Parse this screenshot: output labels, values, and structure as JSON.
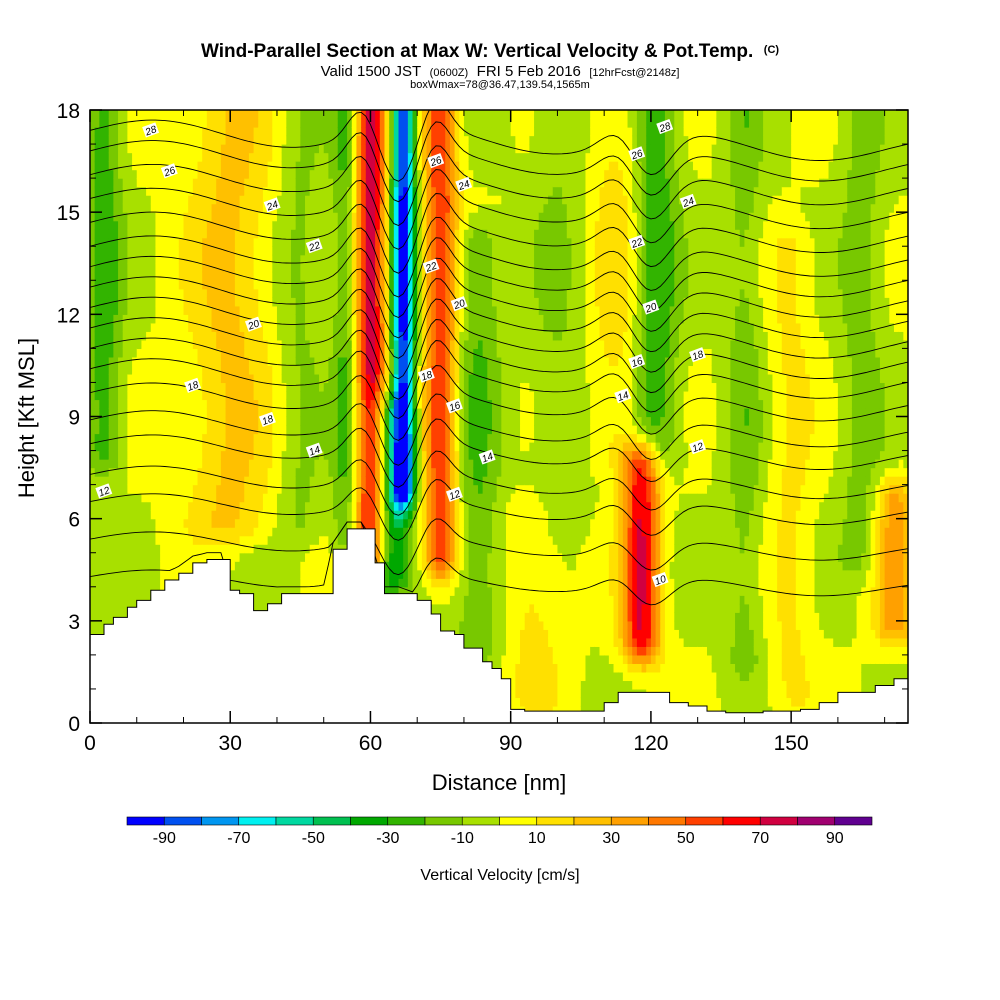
{
  "title": {
    "main": "Wind-Parallel Section at Max W: Vertical Velocity & Pot.Temp.",
    "main_mark": "(C)",
    "line2_a": "Valid 1500 JST",
    "line2_b": "(0600Z)",
    "line2_c": "FRI 5 Feb 2016",
    "line2_d": "[12hrFcst@2148z]",
    "line3": "boxWmax=78@36.47,139.54,1565m"
  },
  "chart_data": {
    "type": "heatmap",
    "xlabel": "Distance [nm]",
    "ylabel": "Height [Kft MSL]",
    "xlim": [
      0,
      175
    ],
    "ylim": [
      0,
      18
    ],
    "x_ticks": [
      0,
      30,
      60,
      90,
      120,
      150
    ],
    "x_tick_labels": [
      "0",
      "30",
      "60",
      "90",
      "120",
      "150"
    ],
    "y_ticks": [
      0,
      3,
      6,
      9,
      12,
      15,
      18
    ],
    "y_tick_labels": [
      "0",
      "3",
      "6",
      "9",
      "12",
      "15",
      "18"
    ],
    "colorbar": {
      "title": "Vertical Velocity [cm/s]",
      "levels": [
        -100,
        -90,
        -80,
        -70,
        -60,
        -50,
        -40,
        -30,
        -20,
        -10,
        0,
        10,
        20,
        30,
        40,
        50,
        60,
        70,
        80,
        90,
        100
      ],
      "colors": [
        "#0000ff",
        "#0050f0",
        "#0096f0",
        "#00f0f0",
        "#00d8a0",
        "#00c050",
        "#00a800",
        "#32b400",
        "#78c800",
        "#a8e000",
        "#ffff00",
        "#ffe000",
        "#ffc000",
        "#ffa000",
        "#ff7800",
        "#ff4000",
        "#ff0000",
        "#d00040",
        "#a00070",
        "#600090"
      ],
      "tick_values": [
        -90,
        -70,
        -50,
        -30,
        -10,
        10,
        30,
        50,
        70,
        90
      ],
      "tick_labels": [
        "-90",
        "-70",
        "-50",
        "-30",
        "-10",
        "10",
        "30",
        "50",
        "70",
        "90"
      ]
    },
    "velocity_features": [
      {
        "x": 60,
        "width": 3.5,
        "amplitude": 75,
        "zmin": 5,
        "zmax": 18
      },
      {
        "x": 67,
        "width": 2.5,
        "amplitude": -95,
        "zmin": 7,
        "zmax": 18
      },
      {
        "x": 64,
        "width": 4,
        "amplitude": -40,
        "zmin": 4.5,
        "zmax": 9
      },
      {
        "x": 75,
        "width": 3.5,
        "amplitude": 60,
        "zmin": 5,
        "zmax": 18
      },
      {
        "x": 55,
        "width": 3,
        "amplitude": -25,
        "zmin": 5.5,
        "zmax": 18
      },
      {
        "x": 83,
        "width": 5,
        "amplitude": -20,
        "zmin": 2.5,
        "zmax": 14
      },
      {
        "x": 118,
        "width": 4,
        "amplitude": 70,
        "zmin": 2.5,
        "zmax": 7.5
      },
      {
        "x": 121,
        "width": 5,
        "amplitude": -28,
        "zmin": 8,
        "zmax": 18
      },
      {
        "x": 113,
        "width": 6,
        "amplitude": 15,
        "zmin": 8,
        "zmax": 18
      },
      {
        "x": 3,
        "width": 4,
        "amplitude": -25,
        "zmin": 8,
        "zmax": 18
      },
      {
        "x": 30,
        "width": 9,
        "amplitude": 22,
        "zmin": 6,
        "zmax": 18
      },
      {
        "x": 45,
        "width": 5,
        "amplitude": -12,
        "zmin": 6,
        "zmax": 18
      },
      {
        "x": 95,
        "width": 6,
        "amplitude": 14,
        "zmin": 1,
        "zmax": 6
      },
      {
        "x": 140,
        "width": 4,
        "amplitude": -15,
        "zmin": 2,
        "zmax": 18
      },
      {
        "x": 150,
        "width": 5,
        "amplitude": 12,
        "zmin": 1,
        "zmax": 14
      },
      {
        "x": 172,
        "width": 4,
        "amplitude": 35,
        "zmin": 3,
        "zmax": 6.5
      },
      {
        "x": 165,
        "width": 5,
        "amplitude": -14,
        "zmin": 5,
        "zmax": 18
      },
      {
        "x": 100,
        "width": 6,
        "amplitude": -10,
        "zmin": 6,
        "zmax": 18
      }
    ],
    "terrain": {
      "x": [
        0,
        3,
        5,
        8,
        10,
        13,
        16,
        19,
        22,
        25,
        28,
        30,
        32,
        35,
        38,
        41,
        44,
        47,
        50,
        52,
        55,
        58,
        61,
        63,
        66,
        70,
        73,
        75,
        78,
        80,
        84,
        86,
        88,
        90,
        93,
        96,
        100,
        104,
        108,
        110,
        113,
        116,
        120,
        124,
        128,
        132,
        136,
        140,
        144,
        148,
        152,
        156,
        160,
        164,
        168,
        172,
        175
      ],
      "h": [
        2.6,
        2.9,
        3.1,
        3.4,
        3.6,
        3.9,
        4.2,
        4.4,
        4.7,
        4.8,
        4.8,
        3.9,
        3.8,
        3.3,
        3.5,
        3.8,
        3.8,
        3.8,
        3.8,
        5.1,
        5.7,
        5.7,
        4.7,
        3.8,
        3.8,
        3.6,
        3.2,
        2.7,
        2.6,
        2.2,
        1.8,
        1.6,
        1.3,
        0.4,
        0.35,
        0.35,
        0.35,
        0.35,
        0.35,
        0.6,
        0.9,
        0.9,
        0.9,
        0.6,
        0.5,
        0.35,
        0.3,
        0.3,
        0.35,
        0.35,
        0.4,
        0.6,
        0.9,
        0.9,
        1.1,
        1.3,
        1.3
      ]
    },
    "theta_contours": [
      {
        "value": 10,
        "base": 4.3
      },
      {
        "value": 11,
        "base": 5.4
      },
      {
        "value": 12,
        "base": 6.5
      },
      {
        "value": 13,
        "base": 7.3
      },
      {
        "value": 14,
        "base": 8.2
      },
      {
        "value": 15,
        "base": 8.9
      },
      {
        "value": 16,
        "base": 9.7
      },
      {
        "value": 17,
        "base": 10.4
      },
      {
        "value": 18,
        "base": 11.0
      },
      {
        "value": 19,
        "base": 11.6
      },
      {
        "value": 20,
        "base": 12.2
      },
      {
        "value": 21,
        "base": 12.8
      },
      {
        "value": 22,
        "base": 13.4
      },
      {
        "value": 23,
        "base": 14.0
      },
      {
        "value": 24,
        "base": 14.7
      },
      {
        "value": 25,
        "base": 15.4
      },
      {
        "value": 26,
        "base": 16.1
      },
      {
        "value": 27,
        "base": 16.8
      },
      {
        "value": 28,
        "base": 17.4
      }
    ],
    "contour_labels": [
      {
        "text": "28",
        "x": 13,
        "y": 17.4
      },
      {
        "text": "26",
        "x": 17,
        "y": 16.2
      },
      {
        "text": "24",
        "x": 39,
        "y": 15.2
      },
      {
        "text": "22",
        "x": 48,
        "y": 14.0
      },
      {
        "text": "20",
        "x": 35,
        "y": 11.7
      },
      {
        "text": "18",
        "x": 22,
        "y": 9.9
      },
      {
        "text": "18",
        "x": 38,
        "y": 8.9
      },
      {
        "text": "14",
        "x": 48,
        "y": 8.0
      },
      {
        "text": "12",
        "x": 3,
        "y": 6.8
      },
      {
        "text": "26",
        "x": 74,
        "y": 16.5
      },
      {
        "text": "24",
        "x": 80,
        "y": 15.8
      },
      {
        "text": "22",
        "x": 73,
        "y": 13.4
      },
      {
        "text": "20",
        "x": 79,
        "y": 12.3
      },
      {
        "text": "18",
        "x": 72,
        "y": 10.2
      },
      {
        "text": "16",
        "x": 78,
        "y": 9.3
      },
      {
        "text": "14",
        "x": 85,
        "y": 7.8
      },
      {
        "text": "12",
        "x": 78,
        "y": 6.7
      },
      {
        "text": "28",
        "x": 123,
        "y": 17.5
      },
      {
        "text": "26",
        "x": 117,
        "y": 16.7
      },
      {
        "text": "24",
        "x": 128,
        "y": 15.3
      },
      {
        "text": "22",
        "x": 117,
        "y": 14.1
      },
      {
        "text": "20",
        "x": 120,
        "y": 12.2
      },
      {
        "text": "18",
        "x": 130,
        "y": 10.8
      },
      {
        "text": "16",
        "x": 117,
        "y": 10.6
      },
      {
        "text": "14",
        "x": 114,
        "y": 9.6
      },
      {
        "text": "12",
        "x": 130,
        "y": 8.1
      },
      {
        "text": "10",
        "x": 122,
        "y": 4.2
      }
    ]
  }
}
